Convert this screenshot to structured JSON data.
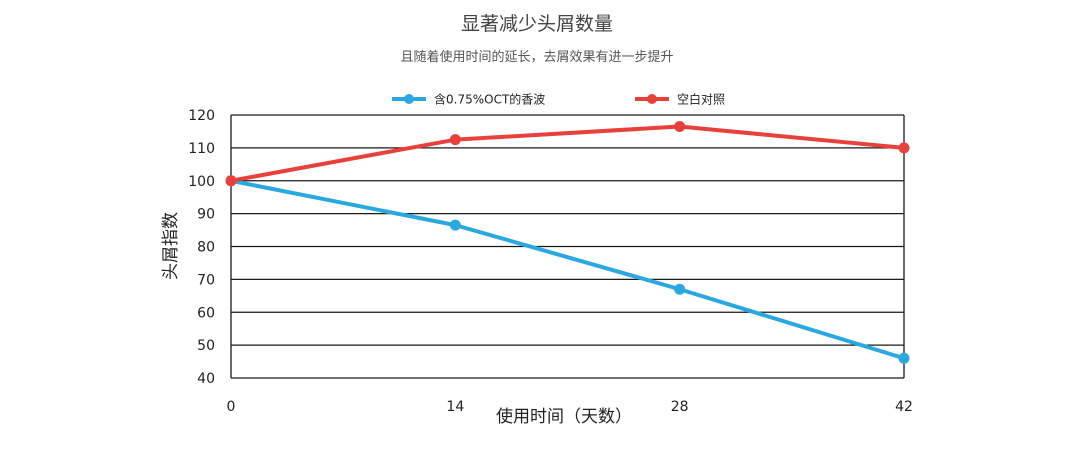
{
  "chart_data": {
    "type": "line",
    "title": "显著减少头屑数量",
    "subtitle": "且随着使用时间的延长，去屑效果有进一步提升",
    "xlabel": "使用时间（天数）",
    "ylabel": "头屑指数",
    "x": [
      0,
      14,
      28,
      42
    ],
    "x_tick_labels": [
      "0",
      "14",
      "28",
      "42"
    ],
    "y_ticks": [
      40,
      50,
      60,
      70,
      80,
      90,
      100,
      110,
      120
    ],
    "ylim": [
      40,
      120
    ],
    "xlim": [
      0,
      42
    ],
    "grid": "horizontal",
    "legend_position": "top-center",
    "series": [
      {
        "name": "含0.75%OCT的香波",
        "color": "#2ba8e0",
        "values": [
          100,
          86.5,
          67,
          46
        ]
      },
      {
        "name": "空白对照",
        "color": "#e8413c",
        "values": [
          100,
          112.5,
          116.5,
          110
        ]
      }
    ]
  }
}
